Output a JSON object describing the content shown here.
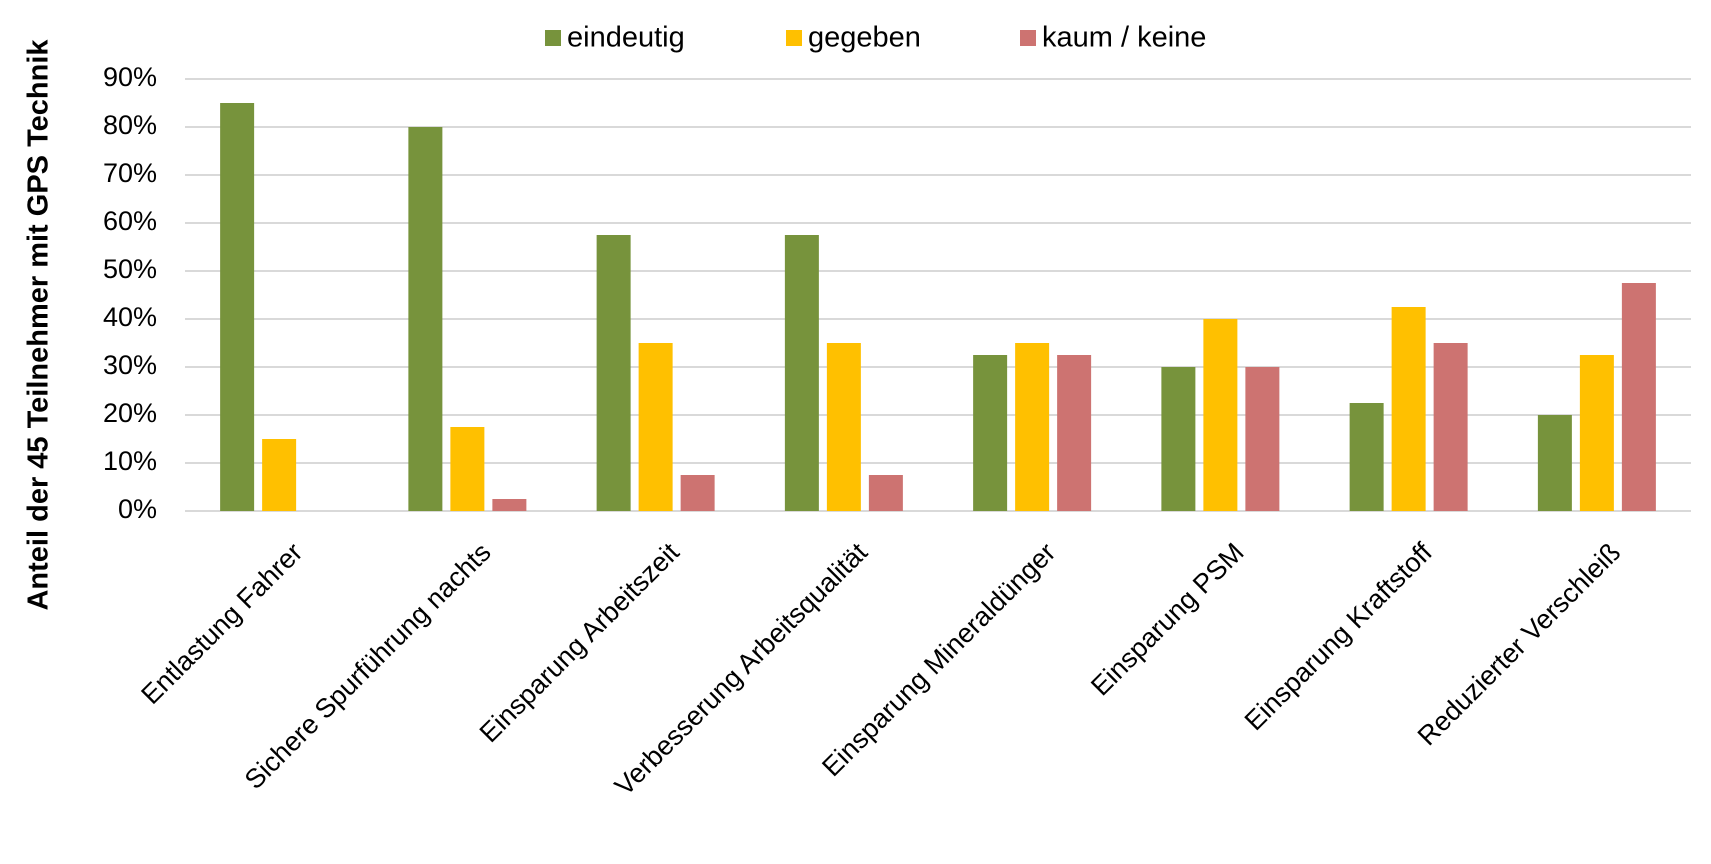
{
  "chart_data": {
    "type": "bar",
    "y_label": "Anteil der 45 Teilnehmer mit GPS Technik",
    "categories": [
      "Entlastung Fahrer",
      "Sichere Spurführung nachts",
      "Einsparung Arbeitszeit",
      "Verbesserung Arbeitsqualität",
      "Einsparung Mineraldünger",
      "Einsparung PSM",
      "Einsparung Kraftstoff",
      "Reduzierter Verschleiß"
    ],
    "series": [
      {
        "name": "eindeutig",
        "color": "#77933c",
        "values": [
          85,
          80,
          57.5,
          57.5,
          32.5,
          30,
          22.5,
          20
        ]
      },
      {
        "name": "gegeben",
        "color": "#ffc000",
        "values": [
          15,
          17.5,
          35,
          35,
          35,
          40,
          42.5,
          32.5
        ]
      },
      {
        "name": "kaum / keine",
        "color": "#cd7371",
        "values": [
          0,
          2.5,
          7.5,
          7.5,
          32.5,
          30,
          35,
          47.5
        ]
      }
    ],
    "ylim": [
      0,
      90
    ],
    "yticks": [
      {
        "value": 0,
        "label": "0%"
      },
      {
        "value": 10,
        "label": "10%"
      },
      {
        "value": 20,
        "label": "20%"
      },
      {
        "value": 30,
        "label": "30%"
      },
      {
        "value": 40,
        "label": "40%"
      },
      {
        "value": 50,
        "label": "50%"
      },
      {
        "value": 60,
        "label": "60%"
      },
      {
        "value": 70,
        "label": "70%"
      },
      {
        "value": 80,
        "label": "80%"
      },
      {
        "value": 90,
        "label": "90%"
      }
    ],
    "grid": true,
    "legend": "top"
  }
}
